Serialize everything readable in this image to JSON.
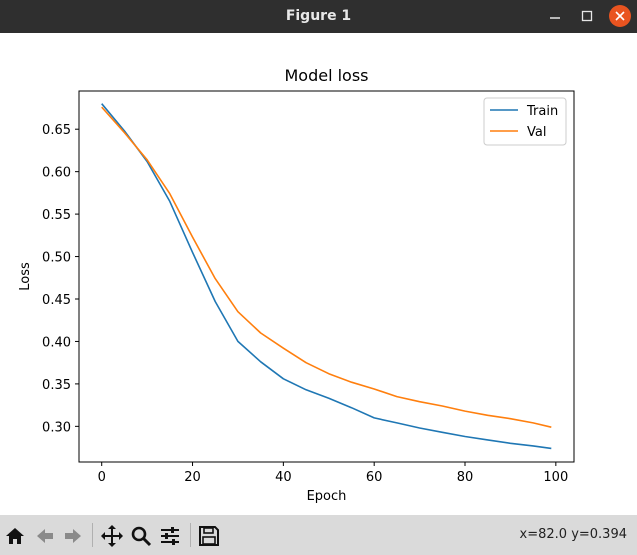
{
  "window": {
    "title": "Figure 1"
  },
  "toolbar": {
    "coordinates": "x=82.0 y=0.394",
    "buttons": [
      "home-icon",
      "back-icon",
      "forward-icon",
      "pan-icon",
      "zoom-icon",
      "configure-subplots-icon",
      "save-icon"
    ]
  },
  "colors": {
    "train": "#1f77b4",
    "val": "#ff7f0e"
  },
  "chart_data": {
    "type": "line",
    "title": "Model loss",
    "xlabel": "Epoch",
    "ylabel": "Loss",
    "xlim": [
      -5,
      104
    ],
    "ylim": [
      0.258,
      0.695
    ],
    "xticks": [
      0,
      20,
      40,
      60,
      80,
      100
    ],
    "yticks": [
      0.3,
      0.35,
      0.4,
      0.45,
      0.5,
      0.55,
      0.6,
      0.65
    ],
    "legend": "top-right",
    "grid": false,
    "series": [
      {
        "name": "Train",
        "x": [
          0,
          5,
          10,
          15,
          20,
          25,
          30,
          35,
          40,
          45,
          50,
          55,
          60,
          65,
          70,
          75,
          80,
          85,
          90,
          95,
          99
        ],
        "values": [
          0.68,
          0.648,
          0.612,
          0.565,
          0.505,
          0.447,
          0.4,
          0.376,
          0.356,
          0.343,
          0.333,
          0.322,
          0.31,
          0.304,
          0.298,
          0.293,
          0.288,
          0.284,
          0.28,
          0.277,
          0.274
        ]
      },
      {
        "name": "Val",
        "x": [
          0,
          5,
          10,
          15,
          20,
          25,
          30,
          35,
          40,
          45,
          50,
          55,
          60,
          65,
          70,
          75,
          80,
          85,
          90,
          95,
          99
        ],
        "values": [
          0.676,
          0.646,
          0.614,
          0.574,
          0.523,
          0.474,
          0.435,
          0.41,
          0.392,
          0.375,
          0.362,
          0.352,
          0.344,
          0.335,
          0.329,
          0.324,
          0.318,
          0.313,
          0.309,
          0.304,
          0.299
        ]
      }
    ]
  }
}
